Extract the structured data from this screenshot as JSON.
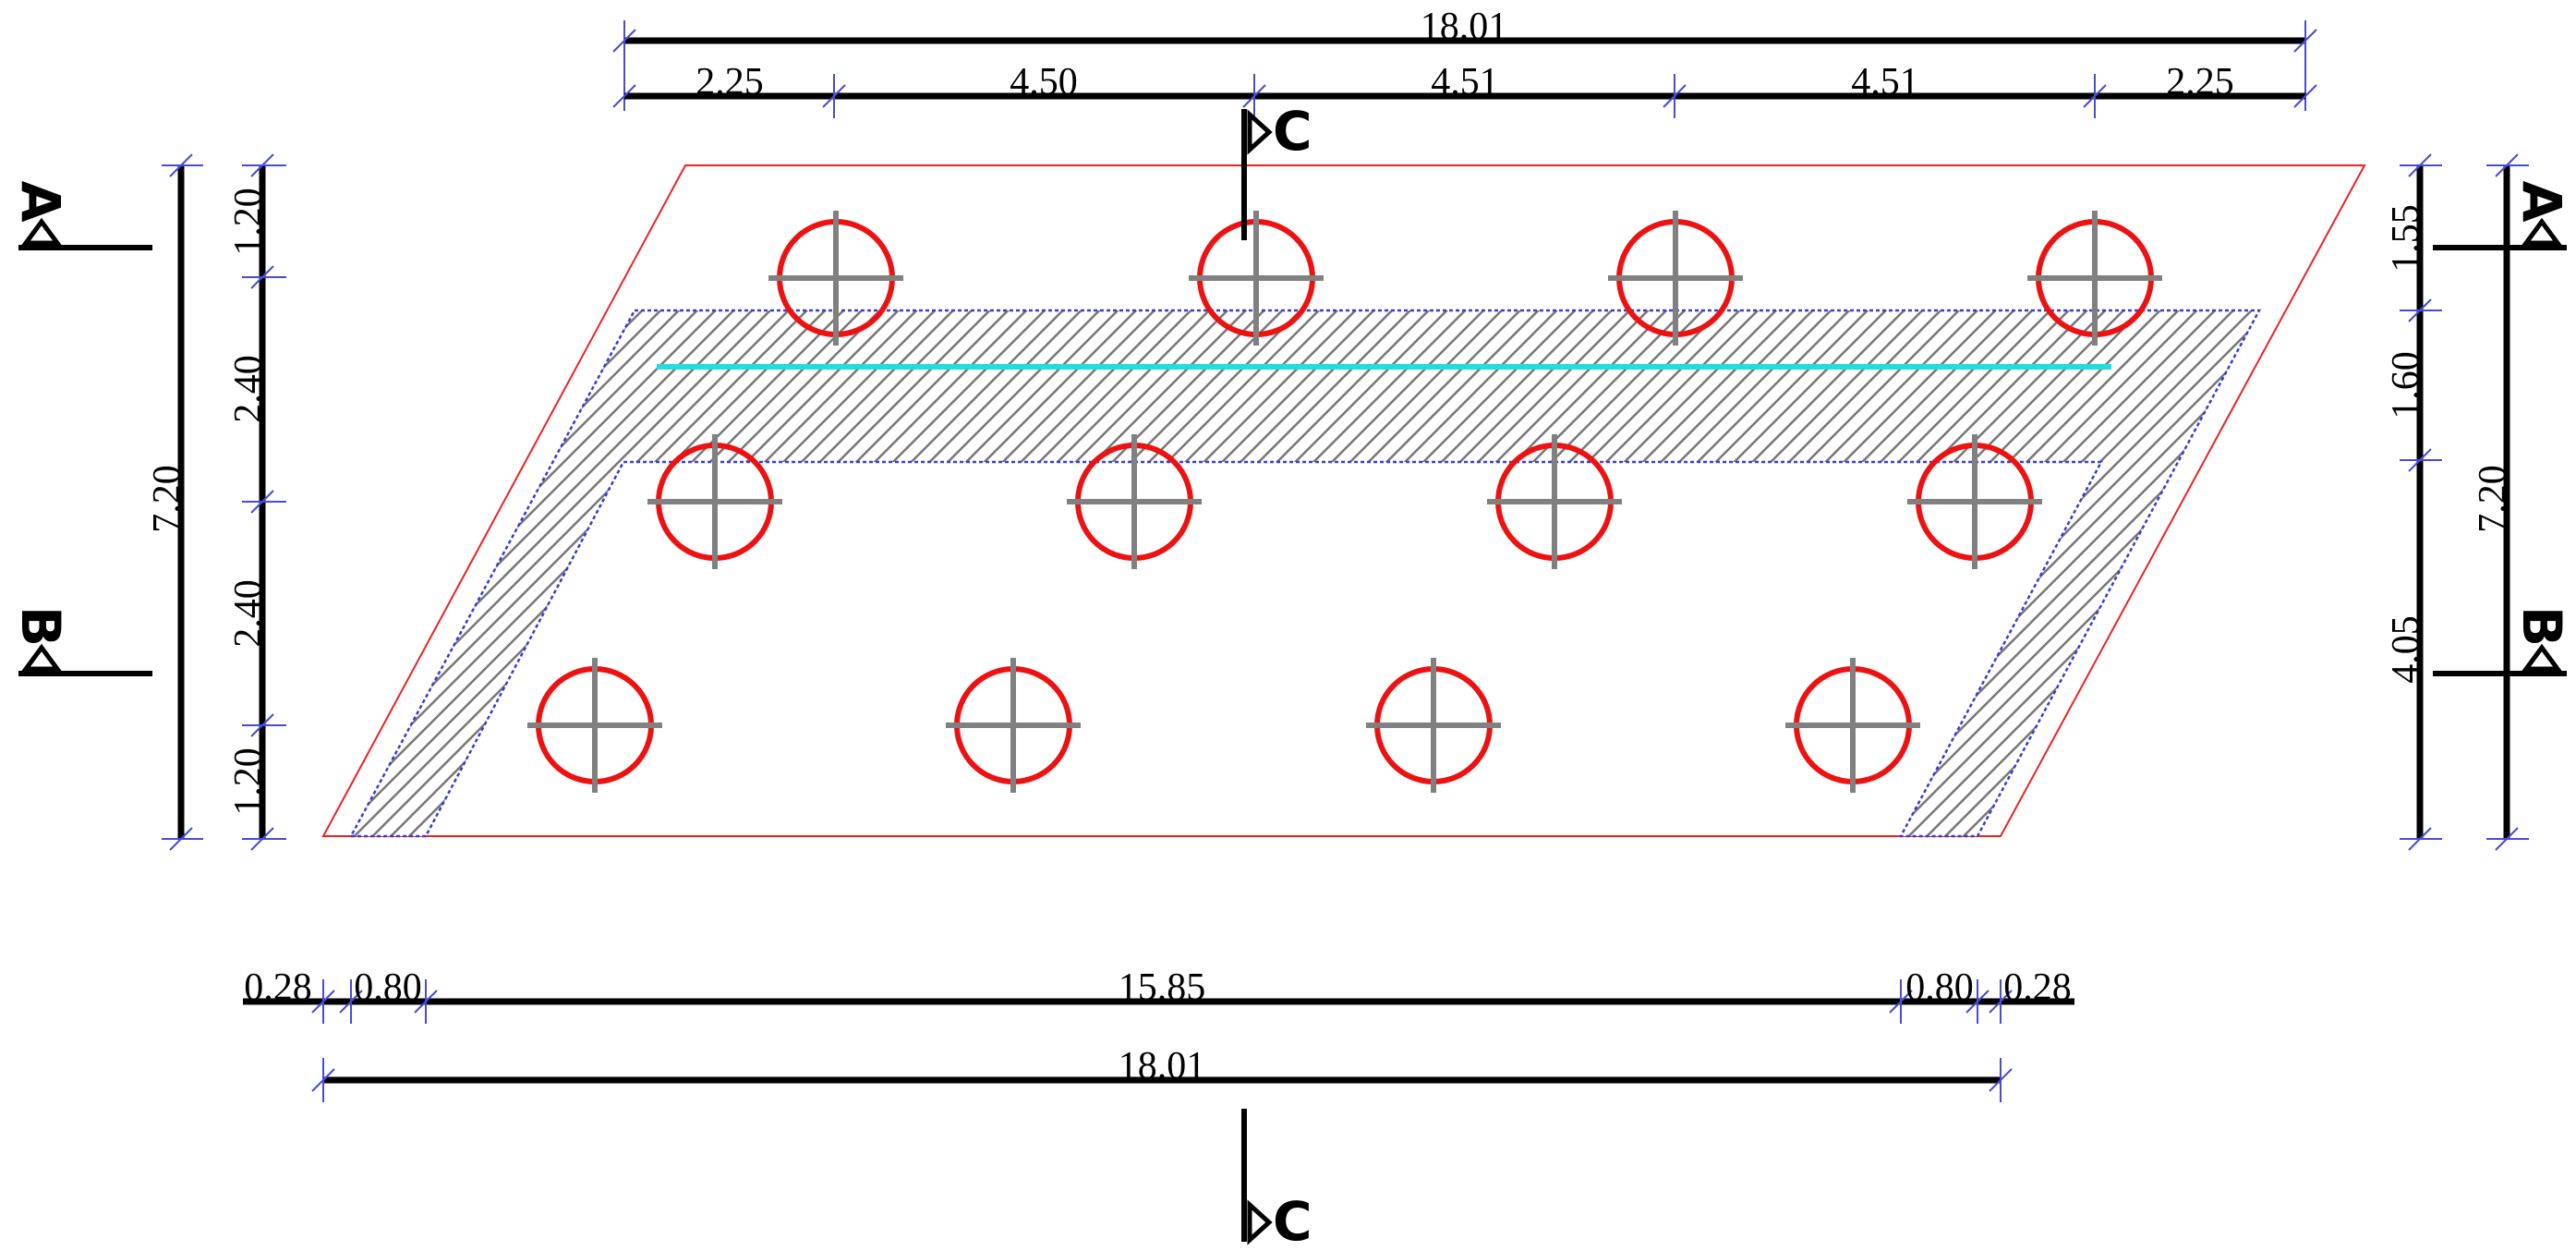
{
  "drawing": {
    "top_dims": {
      "overall": "18.01",
      "segments": [
        "2.25",
        "4.50",
        "4.51",
        "4.51",
        "2.25"
      ]
    },
    "bottom_dims": {
      "overall": "18.01",
      "segments": [
        "0.28",
        "0.80",
        "15.85",
        "0.80",
        "0.28"
      ]
    },
    "left_dims": {
      "overall": "7.20",
      "segments": [
        "1.20",
        "2.40",
        "2.40",
        "1.20"
      ]
    },
    "right_dims": {
      "overall": "7.20",
      "segments": [
        "1.55",
        "1.60",
        "4.05"
      ]
    },
    "section_marks": {
      "a": "A",
      "b": "B",
      "c": "C"
    }
  },
  "colors": {
    "pile": "#ee1111",
    "pile_cross": "#808080",
    "cap_outline": "#ee2222",
    "wall_hatch_border": "#3a3ad8",
    "axis_line": "#22dddd",
    "dimension": "#000000"
  },
  "icons": {
    "pile": "circle-with-crosshair",
    "section_arrow": "triangle-flag"
  }
}
